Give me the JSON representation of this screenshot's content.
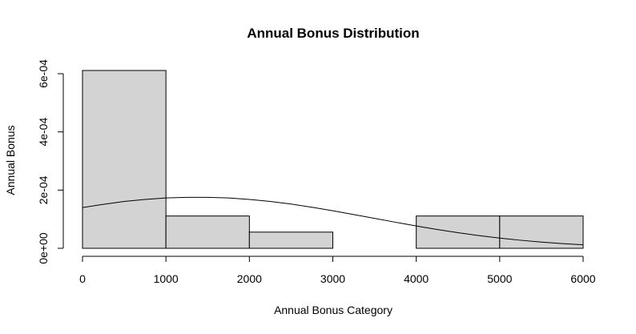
{
  "chart_data": {
    "type": "bar",
    "title": "Annual Bonus Distribution",
    "xlabel": "Annual Bonus Category",
    "ylabel": "Annual Bonus",
    "bins": [
      {
        "x0": 0,
        "x1": 1000,
        "density": 0.000611
      },
      {
        "x0": 1000,
        "x1": 2000,
        "density": 0.000111
      },
      {
        "x0": 2000,
        "x1": 3000,
        "density": 5.56e-05
      },
      {
        "x0": 3000,
        "x1": 4000,
        "density": 0
      },
      {
        "x0": 4000,
        "x1": 5000,
        "density": 0.000111
      },
      {
        "x0": 5000,
        "x1": 6000,
        "density": 0.000111
      }
    ],
    "curve": {
      "x": [
        0,
        250,
        500,
        750,
        1000,
        1250,
        1500,
        1750,
        2000,
        2250,
        2500,
        2750,
        3000,
        3250,
        3500,
        3750,
        4000,
        4250,
        4500,
        4750,
        5000,
        5250,
        5500,
        5750,
        6000
      ],
      "y": [
        0.00014,
        0.000151,
        0.000161,
        0.000168,
        0.000173,
        0.000175,
        0.000175,
        0.000173,
        0.000168,
        0.000161,
        0.000152,
        0.000141,
        0.000129,
        0.000116,
        0.000103,
        8.96e-05,
        7.68e-05,
        6.48e-05,
        5.37e-05,
        4.38e-05,
        3.51e-05,
        2.77e-05,
        2.15e-05,
        1.63e-05,
        1.22e-05
      ]
    },
    "xlim": [
      0,
      6000
    ],
    "ylim": [
      0,
      0.000611
    ],
    "x_ticks": [
      0,
      1000,
      2000,
      3000,
      4000,
      5000,
      6000
    ],
    "x_tick_labels": [
      "0",
      "1000",
      "2000",
      "3000",
      "4000",
      "5000",
      "6000"
    ],
    "y_ticks": [
      0,
      0.0002,
      0.0004,
      0.0006
    ],
    "y_tick_labels": [
      "0e+00",
      "2e-04",
      "4e-04",
      "6e-04"
    ],
    "bar_fill": "#d3d3d3",
    "grid": false,
    "legend": "none"
  }
}
